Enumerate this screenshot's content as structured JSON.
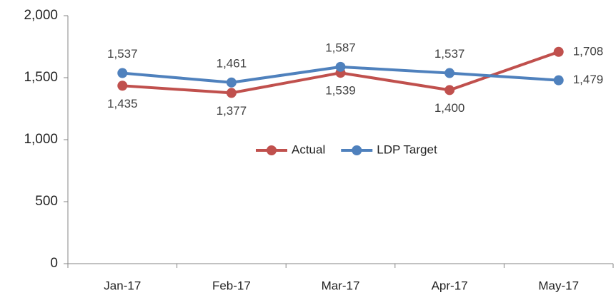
{
  "chart_data": {
    "type": "line",
    "categories": [
      "Jan-17",
      "Feb-17",
      "Mar-17",
      "Apr-17",
      "May-17"
    ],
    "series": [
      {
        "name": "Actual",
        "color": "#c0504d",
        "values": [
          1435,
          1377,
          1539,
          1400,
          1708
        ],
        "value_labels": [
          "1,435",
          "1,377",
          "1,539",
          "1,400",
          "1,708"
        ]
      },
      {
        "name": "LDP Target",
        "color": "#4f81bd",
        "values": [
          1537,
          1461,
          1587,
          1537,
          1479
        ],
        "value_labels": [
          "1,537",
          "1,461",
          "1,587",
          "1,537",
          "1,479"
        ]
      }
    ],
    "ylim": [
      0,
      2000
    ],
    "yticks": [
      {
        "value": 0,
        "label": "0"
      },
      {
        "value": 500,
        "label": "500"
      },
      {
        "value": 1000,
        "label": "1,000"
      },
      {
        "value": 1500,
        "label": "1,500"
      },
      {
        "value": 2000,
        "label": "2,000"
      }
    ],
    "grid": false,
    "legend": "center"
  }
}
